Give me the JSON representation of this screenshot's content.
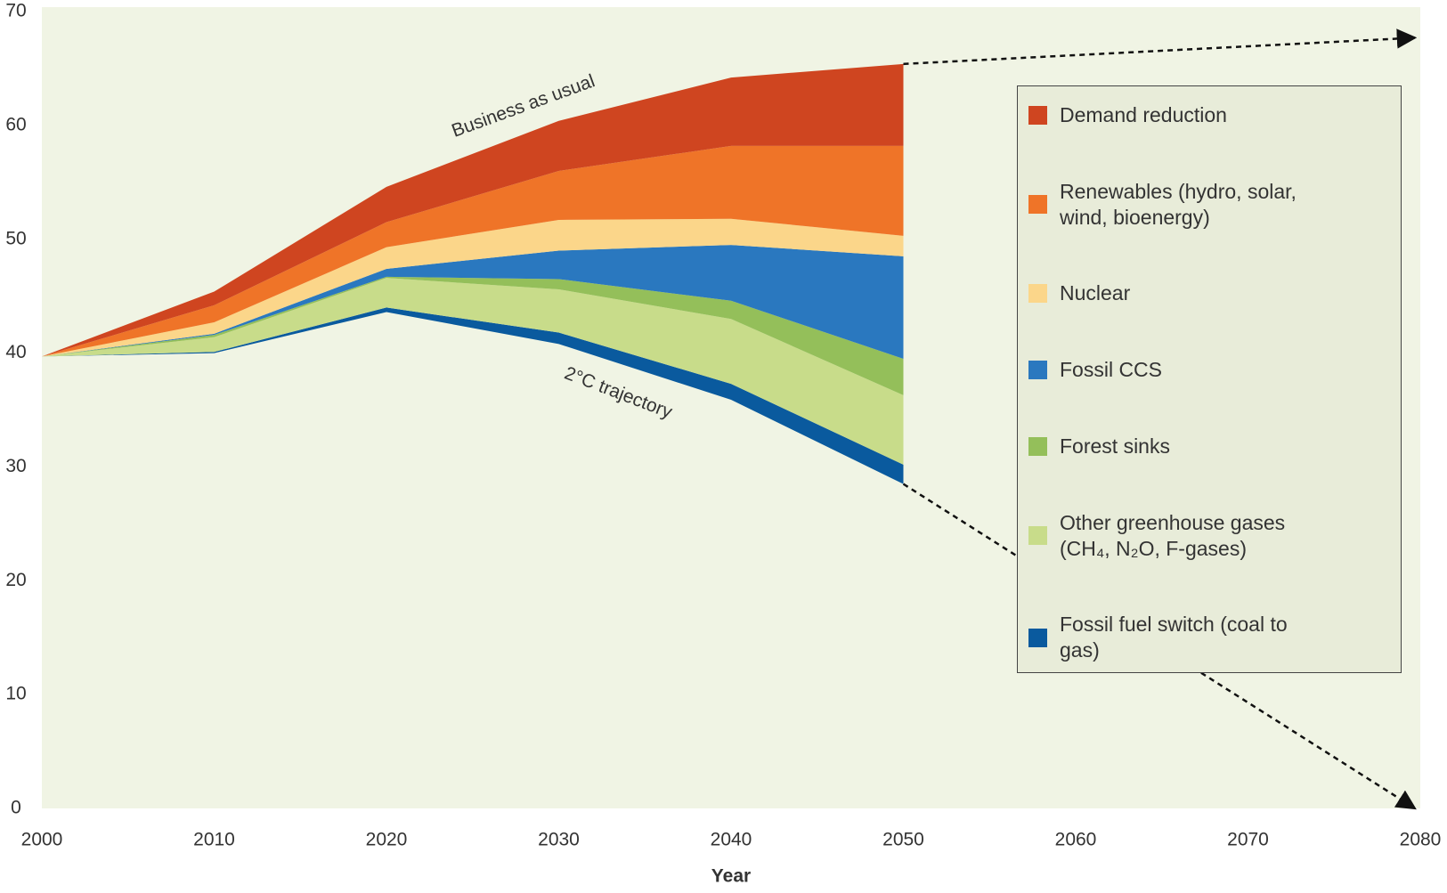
{
  "chart_data": {
    "type": "stacked-area",
    "x_label": "Year",
    "x": [
      2000,
      2010,
      2020,
      2030,
      2040,
      2050
    ],
    "baseline": {
      "label": "2°C trajectory",
      "values": [
        39.7,
        40.0,
        43.6,
        40.8,
        35.9,
        28.5
      ]
    },
    "series": [
      {
        "name": "Demand reduction",
        "color": "#cf4520",
        "values": [
          0,
          1.2,
          3.1,
          4.4,
          6.0,
          7.2
        ]
      },
      {
        "name": "Renewables (hydro, solar, wind, bioenergy)",
        "color": "#ef7428",
        "values": [
          0,
          1.5,
          2.2,
          4.3,
          6.4,
          7.9
        ]
      },
      {
        "name": "Nuclear",
        "color": "#fbd68a",
        "values": [
          0,
          1.0,
          1.9,
          2.7,
          2.3,
          1.8
        ]
      },
      {
        "name": "Fossil CCS",
        "color": "#2a78bf",
        "values": [
          0,
          0.1,
          0.7,
          2.5,
          4.9,
          9.0
        ]
      },
      {
        "name": "Forest sinks",
        "color": "#94bf5a",
        "values": [
          0,
          0.2,
          0.1,
          0.9,
          1.6,
          3.2
        ]
      },
      {
        "name": "Other greenhouse gases (CH₄, N₂O, F-gases)",
        "color": "#c8dc8a",
        "values": [
          0,
          1.3,
          2.6,
          3.8,
          5.7,
          6.1
        ]
      },
      {
        "name": "Fossil fuel switch (coal to gas)",
        "color": "#0a5a9e",
        "values": [
          0,
          0.1,
          0.4,
          1.0,
          1.4,
          1.7
        ]
      }
    ],
    "annotation": "Business as usual",
    "projection_ends": [
      67.7,
      0
    ],
    "xlim": [
      2000,
      2080
    ],
    "xticks": [
      2000,
      2010,
      2020,
      2030,
      2040,
      2050,
      2060,
      2070,
      2080
    ],
    "ylim": [
      0,
      70
    ],
    "yticks": [
      0,
      10,
      20,
      30,
      40,
      50,
      60,
      70
    ]
  }
}
